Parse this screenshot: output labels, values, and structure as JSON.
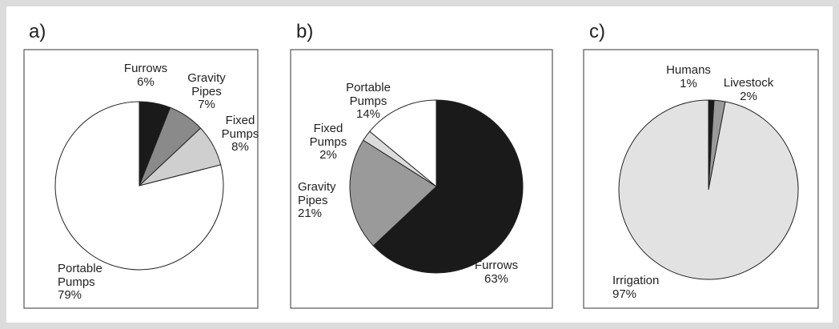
{
  "chart_data": [
    {
      "type": "pie",
      "title": "a)",
      "categories": [
        "Furrows",
        "Gravity Pipes",
        "Fixed Pumps",
        "Portable Pumps"
      ],
      "values": [
        6,
        7,
        8,
        79
      ],
      "value_labels": [
        "6%",
        "7%",
        "8%",
        "79%"
      ],
      "colors": [
        "#1a1a1a",
        "#8a8a8a",
        "#cfcfcf",
        "#ffffff"
      ]
    },
    {
      "type": "pie",
      "title": "b)",
      "categories": [
        "Furrows",
        "Gravity Pipes",
        "Fixed Pumps",
        "Portable Pumps"
      ],
      "values": [
        63,
        21,
        2,
        14
      ],
      "value_labels": [
        "63%",
        "21%",
        "2%",
        "14%"
      ],
      "colors": [
        "#1a1a1a",
        "#9a9a9a",
        "#dcdcdc",
        "#ffffff"
      ]
    },
    {
      "type": "pie",
      "title": "c)",
      "categories": [
        "Humans",
        "Livestock",
        "Irrigation"
      ],
      "values": [
        1,
        2,
        97
      ],
      "value_labels": [
        "1%",
        "2%",
        "97%"
      ],
      "colors": [
        "#1a1a1a",
        "#9a9a9a",
        "#e2e2e2"
      ]
    }
  ]
}
